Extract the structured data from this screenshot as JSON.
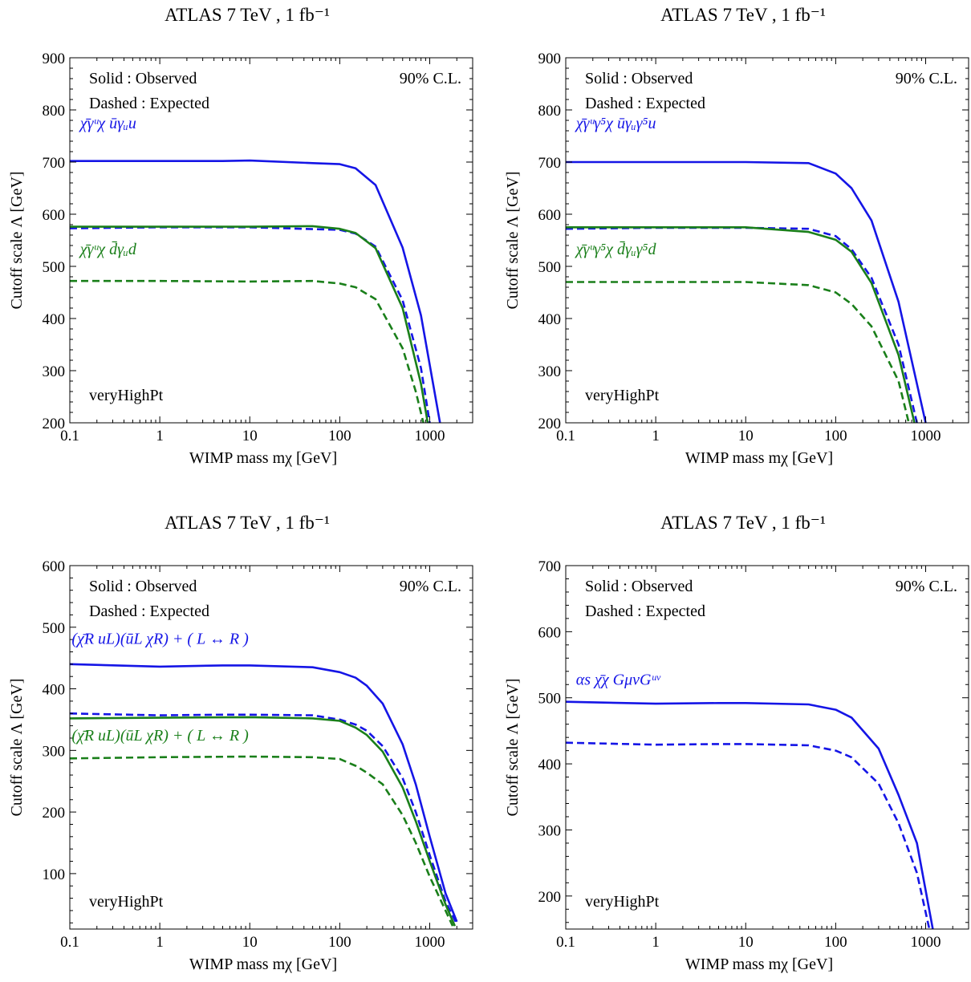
{
  "colors": {
    "blue": "#1515e6",
    "green": "#1a7f1a",
    "axis": "#000000"
  },
  "chart_data": [
    {
      "type": "line",
      "title": "ATLAS  7 TeV , 1 fb⁻¹",
      "xlabel": "WIMP mass mχ [GeV]",
      "ylabel": "Cutoff scale Λ [GeV]",
      "x_scale": "log",
      "xlim": [
        0.1,
        3000
      ],
      "ylim": [
        200,
        900
      ],
      "xticks": [
        0.1,
        1,
        10,
        100,
        1000
      ],
      "xtick_labels": [
        "0.1",
        "1",
        "10",
        "100",
        "1000"
      ],
      "yticks": [
        200,
        300,
        400,
        500,
        600,
        700,
        800,
        900
      ],
      "ytick_labels": [
        "200",
        "300",
        "400",
        "500",
        "600",
        "700",
        "800",
        "900"
      ],
      "grid": false,
      "legend_left": [
        "Solid : Observed",
        "Dashed : Expected"
      ],
      "legend_right": "90% C.L.",
      "region_label": "veryHighPt",
      "annotations": [
        {
          "text": "χ̄γᵘχ ūγᵤu",
          "color": "blue",
          "x": 0.13,
          "y": 765
        },
        {
          "text": "χ̄γᵘχ d̄γᵤd",
          "color": "green",
          "x": 0.13,
          "y": 523
        }
      ],
      "series": [
        {
          "color": "blue",
          "style": "solid",
          "x": [
            0.1,
            1,
            5,
            10,
            50,
            100,
            150,
            250,
            500,
            800,
            1300
          ],
          "y": [
            702,
            702,
            702,
            703,
            698,
            696,
            688,
            656,
            536,
            406,
            200
          ]
        },
        {
          "color": "blue",
          "style": "dashed",
          "x": [
            0.1,
            1,
            10,
            100,
            150,
            250,
            500,
            800,
            1000
          ],
          "y": [
            573,
            575,
            575,
            570,
            563,
            538,
            435,
            305,
            200
          ]
        },
        {
          "color": "green",
          "style": "solid",
          "x": [
            0.1,
            1,
            10,
            50,
            100,
            150,
            250,
            500,
            800,
            950
          ],
          "y": [
            576,
            576,
            576,
            577,
            572,
            564,
            535,
            420,
            275,
            200
          ]
        },
        {
          "color": "green",
          "style": "dashed",
          "x": [
            0.1,
            1,
            10,
            50,
            100,
            150,
            250,
            500,
            700,
            850
          ],
          "y": [
            472,
            472,
            471,
            472,
            467,
            460,
            437,
            343,
            260,
            200
          ]
        }
      ]
    },
    {
      "type": "line",
      "title": "ATLAS  7 TeV , 1 fb⁻¹",
      "xlabel": "WIMP mass mχ [GeV]",
      "ylabel": "Cutoff scale Λ [GeV]",
      "x_scale": "log",
      "xlim": [
        0.1,
        3000
      ],
      "ylim": [
        200,
        900
      ],
      "xticks": [
        0.1,
        1,
        10,
        100,
        1000
      ],
      "xtick_labels": [
        "0.1",
        "1",
        "10",
        "100",
        "1000"
      ],
      "yticks": [
        200,
        300,
        400,
        500,
        600,
        700,
        800,
        900
      ],
      "ytick_labels": [
        "200",
        "300",
        "400",
        "500",
        "600",
        "700",
        "800",
        "900"
      ],
      "grid": false,
      "legend_left": [
        "Solid : Observed",
        "Dashed : Expected"
      ],
      "legend_right": "90% C.L.",
      "region_label": "veryHighPt",
      "annotations": [
        {
          "text": "χ̄γᵘγ⁵χ ūγᵤγ⁵u",
          "color": "blue",
          "x": 0.13,
          "y": 765
        },
        {
          "text": "χ̄γᵘγ⁵χ d̄γᵤγ⁵d",
          "color": "green",
          "x": 0.13,
          "y": 523
        }
      ],
      "series": [
        {
          "color": "blue",
          "style": "solid",
          "x": [
            0.1,
            1,
            10,
            50,
            100,
            150,
            250,
            500,
            1000
          ],
          "y": [
            700,
            700,
            700,
            698,
            678,
            650,
            588,
            432,
            200
          ]
        },
        {
          "color": "blue",
          "style": "dashed",
          "x": [
            0.1,
            1,
            10,
            50,
            100,
            150,
            250,
            500,
            800
          ],
          "y": [
            572,
            574,
            574,
            572,
            558,
            533,
            478,
            350,
            200
          ]
        },
        {
          "color": "green",
          "style": "solid",
          "x": [
            0.1,
            1,
            10,
            50,
            100,
            150,
            250,
            500,
            750
          ],
          "y": [
            575,
            575,
            575,
            566,
            551,
            528,
            468,
            330,
            200
          ]
        },
        {
          "color": "green",
          "style": "dashed",
          "x": [
            0.1,
            1,
            10,
            50,
            100,
            150,
            250,
            500,
            650
          ],
          "y": [
            470,
            470,
            470,
            464,
            450,
            428,
            385,
            280,
            200
          ]
        }
      ]
    },
    {
      "type": "line",
      "title": "ATLAS  7 TeV , 1 fb⁻¹",
      "xlabel": "WIMP mass mχ [GeV]",
      "ylabel": "Cutoff scale Λ [GeV]",
      "x_scale": "log",
      "xlim": [
        0.1,
        3000
      ],
      "ylim": [
        10,
        600
      ],
      "xticks": [
        0.1,
        1,
        10,
        100,
        1000
      ],
      "xtick_labels": [
        "0.1",
        "1",
        "10",
        "100",
        "1000"
      ],
      "yticks": [
        100,
        200,
        300,
        400,
        500,
        600
      ],
      "ytick_labels": [
        "100",
        "200",
        "300",
        "400",
        "500",
        "600"
      ],
      "grid": false,
      "legend_left": [
        "Solid : Observed",
        "Dashed : Expected"
      ],
      "legend_right": "90% C.L.",
      "region_label": "veryHighPt",
      "annotations": [
        {
          "text": "(χ̄R uL)(ūL χR) + ( L ↔ R )",
          "color": "blue",
          "x": 0.105,
          "y": 473
        },
        {
          "text": "(χ̄R uL)(ūL χR) + ( L ↔ R )",
          "color": "green",
          "x": 0.105,
          "y": 316
        }
      ],
      "series": [
        {
          "color": "blue",
          "style": "solid",
          "x": [
            0.1,
            1,
            5,
            10,
            50,
            100,
            150,
            200,
            300,
            500,
            700,
            1000,
            1500,
            2000
          ],
          "y": [
            440,
            436,
            438,
            438,
            435,
            427,
            418,
            405,
            376,
            310,
            245,
            160,
            68,
            22
          ]
        },
        {
          "color": "blue",
          "style": "dashed",
          "x": [
            0.1,
            1,
            5,
            10,
            50,
            100,
            150,
            200,
            300,
            500,
            700,
            1000,
            1500,
            2000
          ],
          "y": [
            360,
            357,
            358,
            358,
            357,
            350,
            342,
            332,
            307,
            255,
            200,
            130,
            55,
            18
          ]
        },
        {
          "color": "green",
          "style": "solid",
          "x": [
            0.1,
            1,
            10,
            50,
            100,
            150,
            200,
            300,
            500,
            700,
            1000,
            1500,
            1900
          ],
          "y": [
            352,
            353,
            354,
            352,
            348,
            337,
            325,
            298,
            240,
            185,
            120,
            50,
            15
          ]
        },
        {
          "color": "green",
          "style": "dashed",
          "x": [
            0.1,
            1,
            10,
            50,
            100,
            150,
            200,
            300,
            500,
            700,
            1000,
            1500,
            1800
          ],
          "y": [
            287,
            289,
            290,
            289,
            286,
            275,
            264,
            245,
            195,
            150,
            95,
            40,
            15
          ]
        }
      ]
    },
    {
      "type": "line",
      "title": "ATLAS  7 TeV , 1 fb⁻¹",
      "xlabel": "WIMP mass mχ [GeV]",
      "ylabel": "Cutoff scale Λ [GeV]",
      "x_scale": "log",
      "xlim": [
        0.1,
        3000
      ],
      "ylim": [
        150,
        700
      ],
      "xticks": [
        0.1,
        1,
        10,
        100,
        1000
      ],
      "xtick_labels": [
        "0.1",
        "1",
        "10",
        "100",
        "1000"
      ],
      "yticks": [
        200,
        300,
        400,
        500,
        600,
        700
      ],
      "ytick_labels": [
        "200",
        "300",
        "400",
        "500",
        "600",
        "700"
      ],
      "grid": false,
      "legend_left": [
        "Solid : Observed",
        "Dashed : Expected"
      ],
      "legend_right": "90% C.L.",
      "region_label": "veryHighPt",
      "annotations": [
        {
          "text": "αs χ̄χ GμνGᵘᵛ",
          "color": "blue",
          "x": 0.13,
          "y": 520
        }
      ],
      "series": [
        {
          "color": "blue",
          "style": "solid",
          "x": [
            0.1,
            1,
            5,
            10,
            50,
            100,
            150,
            300,
            500,
            800,
            1200
          ],
          "y": [
            494,
            491,
            492,
            492,
            490,
            482,
            470,
            423,
            353,
            280,
            150
          ]
        },
        {
          "color": "blue",
          "style": "dashed",
          "x": [
            0.1,
            1,
            5,
            10,
            50,
            100,
            150,
            300,
            500,
            800,
            1100
          ],
          "y": [
            432,
            429,
            430,
            430,
            428,
            420,
            410,
            370,
            310,
            235,
            150
          ]
        }
      ]
    }
  ]
}
